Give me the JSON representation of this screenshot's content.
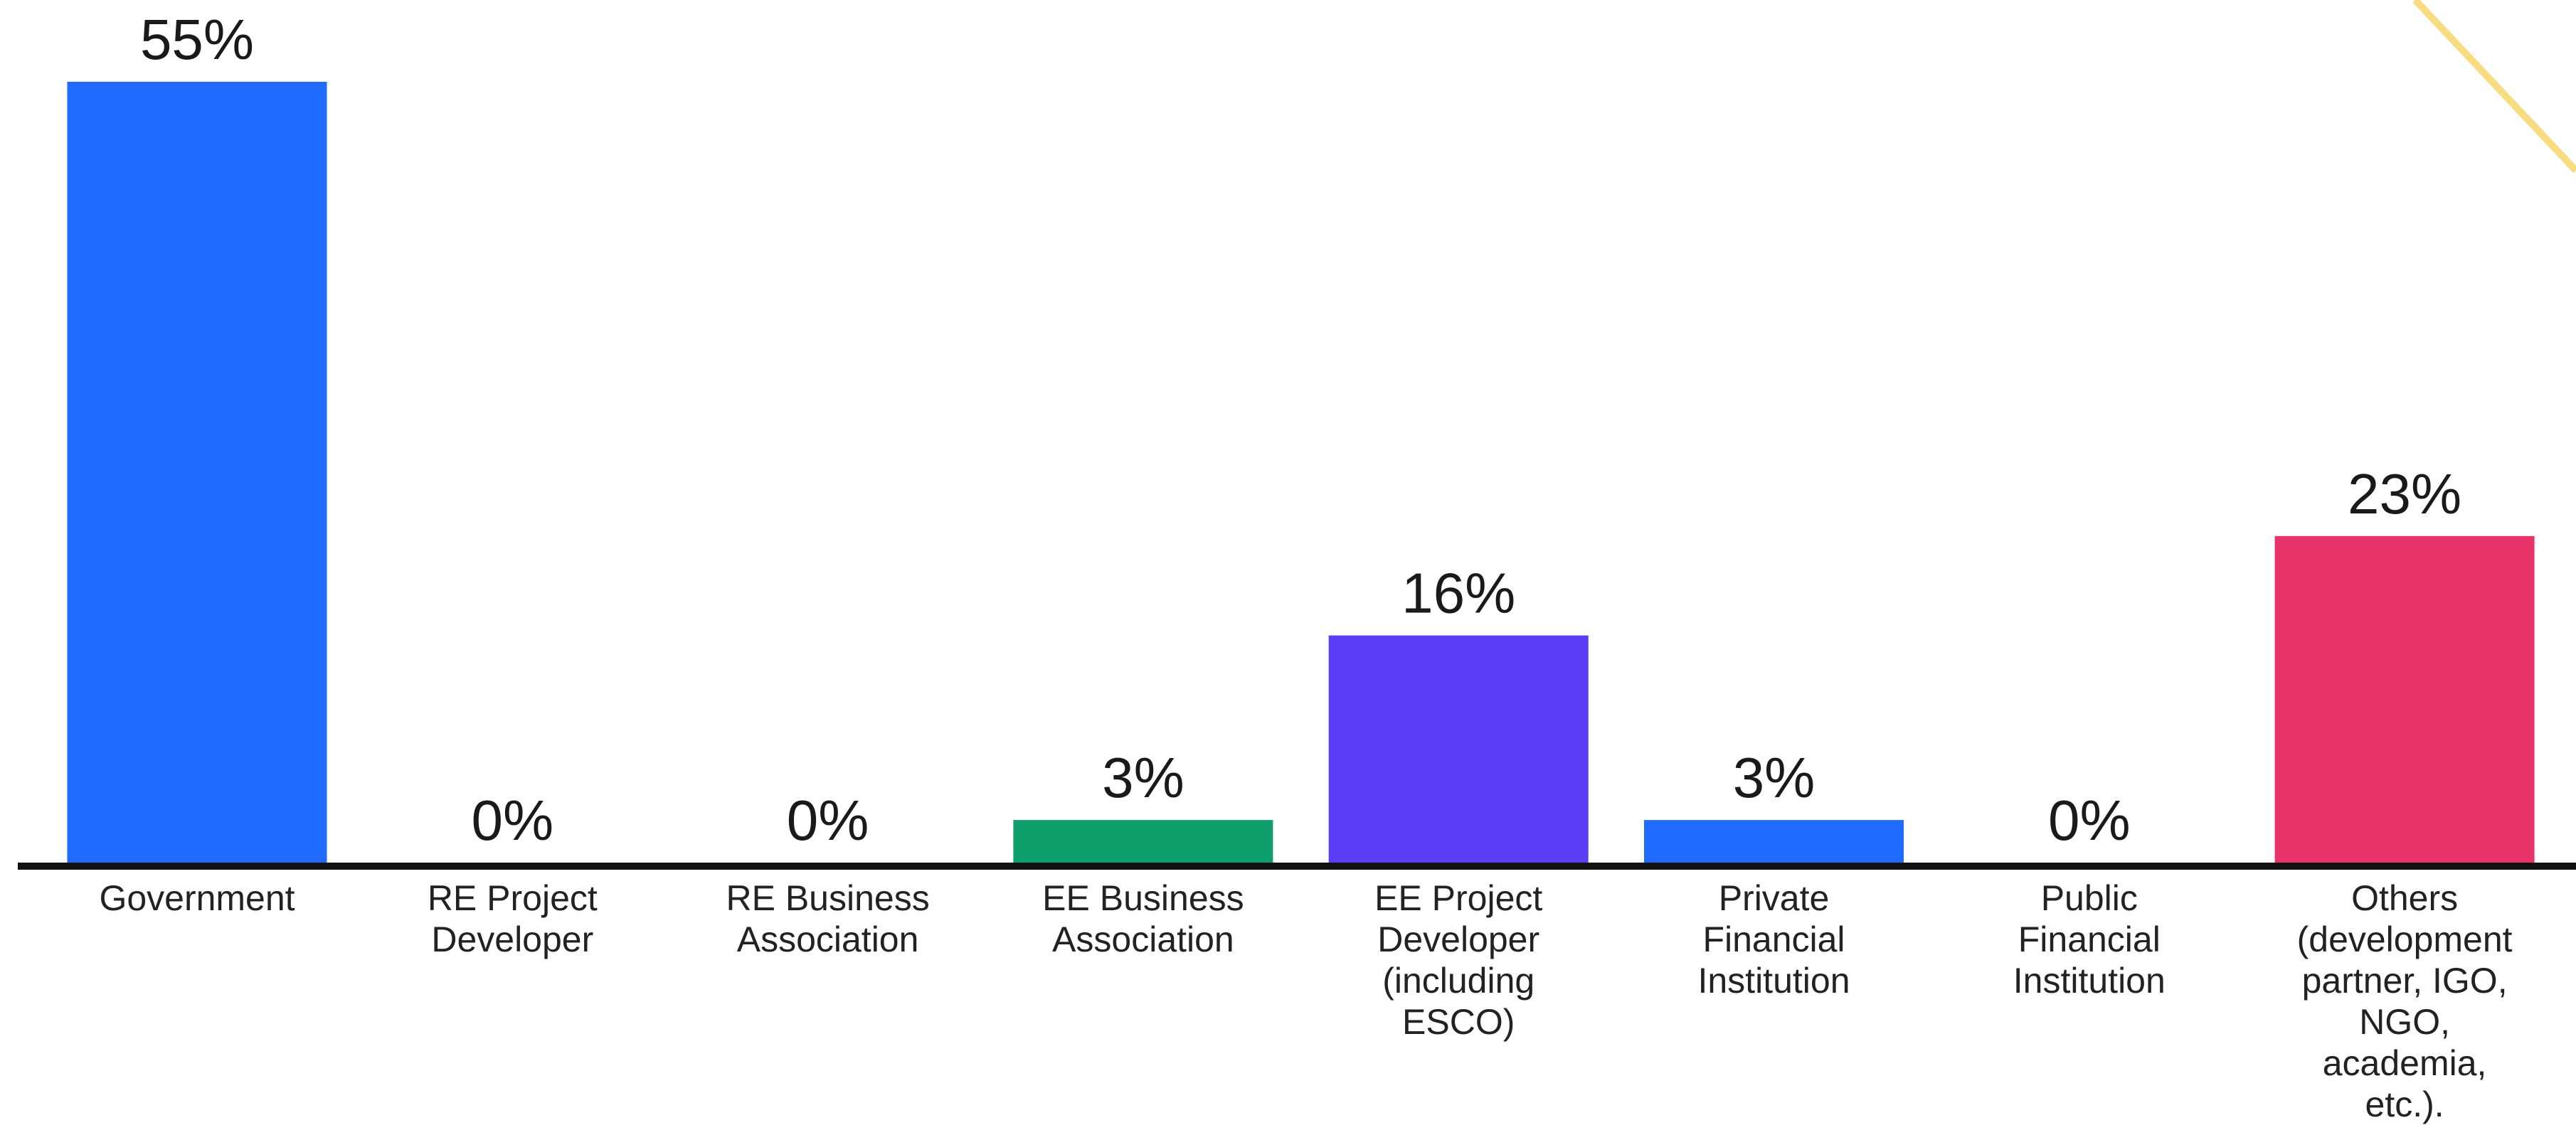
{
  "chart_data": {
    "type": "bar",
    "title": "",
    "xlabel": "",
    "ylabel": "",
    "ylim": [
      0,
      55
    ],
    "grid": false,
    "legend": "none",
    "categories": [
      "Government",
      "RE Project Developer",
      "RE Business Association",
      "EE Business Association",
      "EE Project Developer (including ESCO)",
      "Private Financial Institution",
      "Public Financial Institution",
      "Others (development partner, IGO, NGO, academia, etc.)."
    ],
    "category_lines": [
      [
        "Government"
      ],
      [
        "RE Project",
        "Developer"
      ],
      [
        "RE Business",
        "Association"
      ],
      [
        "EE Business",
        "Association"
      ],
      [
        "EE Project",
        "Developer",
        "(including",
        "ESCO)"
      ],
      [
        "Private",
        "Financial",
        "Institution"
      ],
      [
        "Public",
        "Financial",
        "Institution"
      ],
      [
        "Others",
        "(development",
        "partner, IGO,",
        "NGO,",
        "academia,",
        "etc.)."
      ]
    ],
    "values": [
      55,
      0,
      0,
      3,
      16,
      3,
      0,
      23
    ],
    "value_labels": [
      "55%",
      "0%",
      "0%",
      "3%",
      "16%",
      "3%",
      "0%",
      "23%"
    ],
    "bar_colors": [
      "#1f6bff",
      "#1f6bff",
      "#1f6bff",
      "#0e9e6c",
      "#5b3df5",
      "#1f6bff",
      "#1f6bff",
      "#e8336a"
    ],
    "axis_color": "#111111",
    "decoration_color": "#f7dc82"
  }
}
